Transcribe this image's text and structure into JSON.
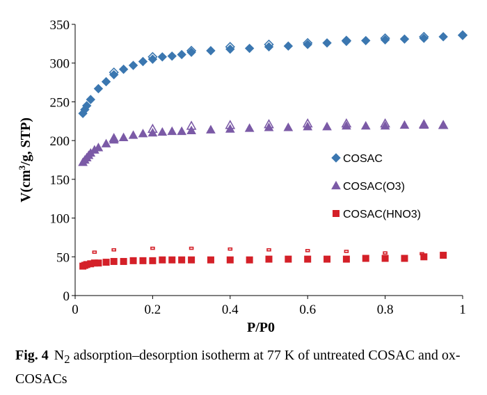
{
  "chart_data": {
    "type": "scatter",
    "xlabel": "P/P0",
    "ylabel_parts": [
      "V(cm",
      "3",
      "/g, STP)"
    ],
    "xlim": [
      0,
      1
    ],
    "ylim": [
      0,
      350
    ],
    "x_ticks": [
      "0",
      "0.2",
      "0.4",
      "0.6",
      "0.8",
      "1"
    ],
    "y_ticks": [
      "0",
      "50",
      "100",
      "150",
      "200",
      "250",
      "300",
      "350"
    ],
    "grid": false,
    "legend_position": "right",
    "colors": {
      "COSAC": "#3b77b0",
      "COSAC(O3)": "#7b5aa6",
      "COSAC(HNO3)": "#d42028"
    },
    "series": [
      {
        "name": "COSAC",
        "marker": "diamond",
        "adsorption": {
          "x": [
            0.02,
            0.025,
            0.03,
            0.04,
            0.06,
            0.08,
            0.1,
            0.125,
            0.15,
            0.175,
            0.2,
            0.225,
            0.25,
            0.275,
            0.3,
            0.35,
            0.4,
            0.45,
            0.5,
            0.55,
            0.6,
            0.65,
            0.7,
            0.75,
            0.8,
            0.85,
            0.9,
            0.95,
            1.0
          ],
          "y": [
            235,
            240,
            245,
            253,
            267,
            276,
            285,
            292,
            297,
            302,
            305,
            308,
            309,
            311,
            314,
            316,
            318,
            319,
            321,
            322,
            324,
            326,
            328,
            329,
            330,
            331,
            332,
            334,
            336
          ]
        },
        "desorption": {
          "x": [
            0.1,
            0.2,
            0.3,
            0.4,
            0.5,
            0.6,
            0.7,
            0.8,
            0.9,
            1.0
          ],
          "y": [
            288,
            308,
            316,
            321,
            324,
            326,
            329,
            332,
            334,
            336
          ]
        }
      },
      {
        "name": "COSAC(O3)",
        "marker": "triangle",
        "adsorption": {
          "x": [
            0.02,
            0.025,
            0.03,
            0.035,
            0.04,
            0.05,
            0.06,
            0.08,
            0.1,
            0.125,
            0.15,
            0.175,
            0.2,
            0.225,
            0.25,
            0.275,
            0.3,
            0.35,
            0.4,
            0.45,
            0.5,
            0.55,
            0.6,
            0.65,
            0.7,
            0.75,
            0.8,
            0.85,
            0.9,
            0.95
          ],
          "y": [
            172,
            175,
            178,
            181,
            184,
            188,
            191,
            196,
            201,
            204,
            207,
            209,
            210,
            211,
            212,
            212,
            213,
            214,
            215,
            216,
            217,
            217,
            218,
            218,
            219,
            219,
            219,
            220,
            220,
            220
          ]
        },
        "desorption": {
          "x": [
            0.1,
            0.2,
            0.3,
            0.4,
            0.5,
            0.6,
            0.7,
            0.8,
            0.9,
            0.95
          ],
          "y": [
            203,
            215,
            219,
            220,
            221,
            222,
            222,
            222,
            221,
            220
          ]
        }
      },
      {
        "name": "COSAC(HNO3)",
        "marker": "square",
        "adsorption": {
          "x": [
            0.02,
            0.025,
            0.03,
            0.04,
            0.05,
            0.06,
            0.08,
            0.1,
            0.125,
            0.15,
            0.175,
            0.2,
            0.225,
            0.25,
            0.275,
            0.3,
            0.35,
            0.4,
            0.45,
            0.5,
            0.55,
            0.6,
            0.65,
            0.7,
            0.75,
            0.8,
            0.85,
            0.9,
            0.95
          ],
          "y": [
            38,
            39,
            40,
            41,
            42,
            42,
            43,
            44,
            44,
            45,
            45,
            45,
            46,
            46,
            46,
            46,
            46,
            46,
            46,
            47,
            47,
            47,
            47,
            47,
            48,
            48,
            48,
            50,
            52
          ]
        },
        "desorption": {
          "x": [
            0.05,
            0.1,
            0.2,
            0.3,
            0.4,
            0.5,
            0.6,
            0.7,
            0.8,
            0.895,
            0.95
          ],
          "y": [
            56,
            59,
            61,
            61,
            60,
            59,
            58,
            57,
            55,
            54,
            53
          ]
        }
      }
    ]
  },
  "caption": {
    "label": "Fig. 4",
    "text_before": "N",
    "text_sub": "2",
    "text_after": " adsorption–desorption isotherm at 77 K of untreated COSAC and ox-COSACs"
  }
}
